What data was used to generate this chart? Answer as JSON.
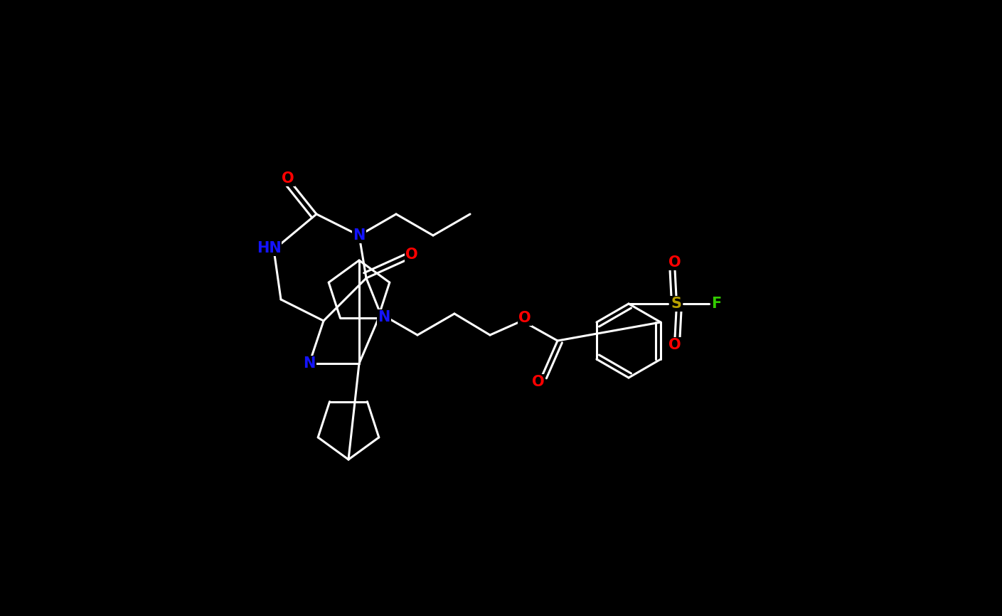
{
  "background_color": "#000000",
  "bond_color": "#ffffff",
  "atom_colors": {
    "N": "#1414ff",
    "HN": "#1414ff",
    "O": "#ff0000",
    "S": "#b8a000",
    "F": "#33cc00"
  },
  "lw": 2.2,
  "figsize": [
    14.09,
    8.66
  ],
  "dpi": 100
}
